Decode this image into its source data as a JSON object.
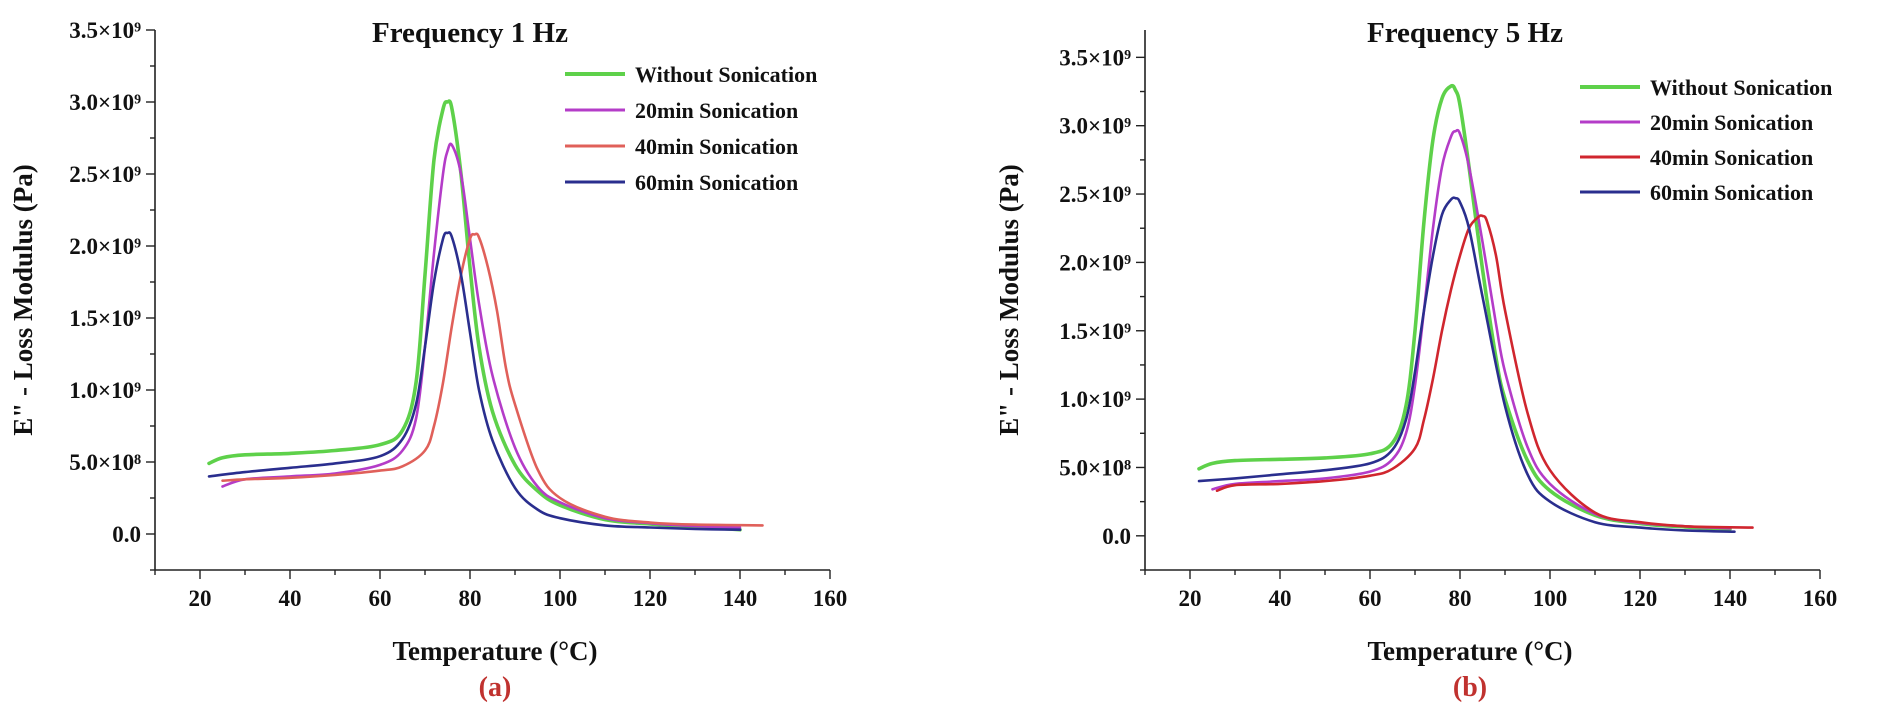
{
  "chart_data": [
    {
      "type": "line",
      "title": "Frequency 1 Hz",
      "xlabel": "Temperature (°C)",
      "ylabel": "E\" - Loss Modulus (Pa)",
      "panel_label": "(a)",
      "xlim": [
        10,
        160
      ],
      "ylim": [
        -250000000,
        3500000000
      ],
      "x_ticks": [
        20,
        40,
        60,
        80,
        100,
        120,
        140,
        160
      ],
      "x_tick_labels": [
        "20",
        "40",
        "60",
        "80",
        "100",
        "120",
        "140",
        "160"
      ],
      "y_ticks": [
        0,
        500000000,
        1000000000,
        1500000000,
        2000000000,
        2500000000,
        3000000000,
        3500000000
      ],
      "y_tick_labels": [
        "0.0",
        "5.0×10⁸",
        "1.0×10⁹",
        "1.5×10⁹",
        "2.0×10⁹",
        "2.5×10⁹",
        "3.0×10⁹",
        "3.5×10⁹"
      ],
      "legend_position": "top-right",
      "grid": false,
      "series": [
        {
          "name": "Without Sonication",
          "color": "#5ed14a",
          "x": [
            22,
            25,
            30,
            40,
            50,
            60,
            65,
            68,
            70,
            72,
            74,
            75,
            76,
            78,
            80,
            82,
            85,
            90,
            95,
            100,
            110,
            120,
            130,
            140
          ],
          "y": [
            490000000,
            530000000,
            550000000,
            560000000,
            580000000,
            620000000,
            720000000,
            1050000000,
            1800000000,
            2600000000,
            2950000000,
            3000000000,
            2950000000,
            2500000000,
            1850000000,
            1300000000,
            850000000,
            480000000,
            300000000,
            200000000,
            100000000,
            70000000,
            50000000,
            30000000
          ]
        },
        {
          "name": "20min Sonication",
          "color": "#b43cc8",
          "x": [
            25,
            30,
            40,
            50,
            60,
            65,
            68,
            70,
            72,
            74,
            75,
            76,
            78,
            80,
            82,
            85,
            90,
            95,
            100,
            110,
            120,
            130,
            140
          ],
          "y": [
            330000000,
            380000000,
            400000000,
            420000000,
            480000000,
            580000000,
            800000000,
            1300000000,
            1950000000,
            2500000000,
            2660000000,
            2700000000,
            2500000000,
            2050000000,
            1600000000,
            1100000000,
            600000000,
            330000000,
            220000000,
            110000000,
            75000000,
            55000000,
            45000000
          ]
        },
        {
          "name": "40min Sonication",
          "color": "#e0605a",
          "x": [
            25,
            30,
            40,
            50,
            60,
            65,
            70,
            72,
            74,
            76,
            78,
            80,
            81,
            82,
            84,
            86,
            88,
            90,
            95,
            100,
            110,
            120,
            130,
            145
          ],
          "y": [
            370000000,
            380000000,
            390000000,
            410000000,
            440000000,
            470000000,
            580000000,
            750000000,
            1050000000,
            1450000000,
            1800000000,
            2050000000,
            2080000000,
            2060000000,
            1850000000,
            1550000000,
            1150000000,
            900000000,
            450000000,
            250000000,
            120000000,
            80000000,
            65000000,
            60000000
          ]
        },
        {
          "name": "60min Sonication",
          "color": "#2a2e8e",
          "x": [
            22,
            30,
            40,
            50,
            60,
            65,
            68,
            70,
            72,
            74,
            75,
            76,
            78,
            80,
            82,
            85,
            90,
            95,
            100,
            110,
            120,
            130,
            140
          ],
          "y": [
            400000000,
            430000000,
            460000000,
            490000000,
            540000000,
            660000000,
            900000000,
            1300000000,
            1750000000,
            2050000000,
            2090000000,
            2060000000,
            1800000000,
            1400000000,
            1000000000,
            650000000,
            320000000,
            170000000,
            110000000,
            60000000,
            45000000,
            35000000,
            30000000
          ]
        }
      ]
    },
    {
      "type": "line",
      "title": "Frequency 5 Hz",
      "xlabel": "Temperature (°C)",
      "ylabel": "E\" - Loss Modulus (Pa)",
      "panel_label": "(b)",
      "xlim": [
        10,
        160
      ],
      "ylim": [
        -250000000,
        3700000000
      ],
      "x_ticks": [
        20,
        40,
        60,
        80,
        100,
        120,
        140,
        160
      ],
      "x_tick_labels": [
        "20",
        "40",
        "60",
        "80",
        "100",
        "120",
        "140",
        "160"
      ],
      "y_ticks": [
        0,
        500000000,
        1000000000,
        1500000000,
        2000000000,
        2500000000,
        3000000000,
        3500000000
      ],
      "y_tick_labels": [
        "0.0",
        "5.0×10⁸",
        "1.0×10⁹",
        "1.5×10⁹",
        "2.0×10⁹",
        "2.5×10⁹",
        "3.0×10⁹",
        "3.5×10⁹"
      ],
      "legend_position": "top-right",
      "grid": false,
      "series": [
        {
          "name": "Without Sonication",
          "color": "#5ed14a",
          "x": [
            22,
            25,
            30,
            40,
            50,
            60,
            65,
            68,
            70,
            72,
            74,
            76,
            78,
            79,
            80,
            82,
            85,
            88,
            90,
            95,
            100,
            110,
            120,
            130,
            140
          ],
          "y": [
            490000000,
            530000000,
            550000000,
            560000000,
            570000000,
            600000000,
            680000000,
            950000000,
            1500000000,
            2300000000,
            2900000000,
            3200000000,
            3290000000,
            3260000000,
            3150000000,
            2700000000,
            1950000000,
            1300000000,
            1000000000,
            550000000,
            330000000,
            150000000,
            90000000,
            65000000,
            50000000
          ]
        },
        {
          "name": "20min Sonication",
          "color": "#b43cc8",
          "x": [
            25,
            30,
            40,
            50,
            60,
            65,
            68,
            70,
            72,
            74,
            76,
            78,
            79,
            80,
            82,
            85,
            88,
            90,
            95,
            100,
            110,
            120,
            130,
            140
          ],
          "y": [
            340000000,
            380000000,
            400000000,
            420000000,
            470000000,
            560000000,
            750000000,
            1100000000,
            1650000000,
            2250000000,
            2700000000,
            2920000000,
            2960000000,
            2940000000,
            2700000000,
            2150000000,
            1550000000,
            1200000000,
            650000000,
            380000000,
            160000000,
            95000000,
            70000000,
            55000000
          ]
        },
        {
          "name": "40min Sonication",
          "color": "#d0262e",
          "x": [
            26,
            30,
            40,
            50,
            60,
            65,
            70,
            72,
            74,
            76,
            78,
            80,
            82,
            84,
            85,
            86,
            88,
            90,
            95,
            100,
            110,
            120,
            130,
            145
          ],
          "y": [
            330000000,
            370000000,
            380000000,
            400000000,
            440000000,
            490000000,
            640000000,
            850000000,
            1150000000,
            1500000000,
            1800000000,
            2050000000,
            2250000000,
            2330000000,
            2340000000,
            2300000000,
            2050000000,
            1650000000,
            900000000,
            480000000,
            170000000,
            100000000,
            70000000,
            60000000
          ]
        },
        {
          "name": "60min Sonication",
          "color": "#2a2e8e",
          "x": [
            22,
            30,
            40,
            50,
            60,
            65,
            68,
            70,
            72,
            74,
            76,
            78,
            79,
            80,
            82,
            85,
            90,
            95,
            100,
            110,
            120,
            130,
            141
          ],
          "y": [
            400000000,
            420000000,
            450000000,
            480000000,
            530000000,
            630000000,
            850000000,
            1200000000,
            1650000000,
            2050000000,
            2350000000,
            2460000000,
            2470000000,
            2440000000,
            2250000000,
            1750000000,
            950000000,
            450000000,
            250000000,
            100000000,
            60000000,
            40000000,
            30000000
          ]
        }
      ]
    }
  ]
}
